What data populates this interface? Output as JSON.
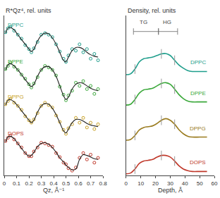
{
  "chart_data": [
    {
      "type": "scatter",
      "marker": "circle-open",
      "y_title": "R*Qz⁴, rel. units",
      "x_title": "Qz, Å⁻¹",
      "xlim": [
        0,
        0.8
      ],
      "xticks": [
        0,
        0.1,
        0.2,
        0.3,
        0.4,
        0.5,
        0.6,
        0.7,
        0.8
      ],
      "ylim": [
        0,
        10
      ],
      "tick_labels": "x",
      "x": [
        0.01,
        0.03,
        0.05,
        0.08,
        0.11,
        0.14,
        0.17,
        0.2,
        0.22,
        0.24,
        0.27,
        0.3,
        0.33,
        0.36,
        0.39,
        0.42,
        0.45,
        0.48,
        0.5,
        0.52,
        0.55,
        0.58,
        0.61,
        0.64,
        0.67,
        0.7,
        0.73,
        0.76
      ],
      "series": [
        {
          "name": "DPPC",
          "color": "#1f9e8c",
          "values": [
            8.95,
            9.2,
            9.3,
            9.05,
            8.8,
            8.55,
            8.15,
            7.9,
            7.7,
            7.95,
            8.35,
            8.8,
            8.9,
            8.8,
            8.65,
            8.2,
            7.75,
            7.3,
            7.1,
            7.5,
            7.9,
            7.8,
            8.2,
            7.7,
            7.9,
            7.3,
            7.6,
            7.2
          ],
          "fit": [
            8.9,
            9.2,
            9.25,
            9.1,
            8.8,
            8.5,
            8.2,
            7.9,
            7.75,
            7.9,
            8.4,
            8.75,
            8.9,
            8.85,
            8.6,
            8.2,
            7.7,
            7.2,
            7.1,
            7.4,
            7.8,
            8.0,
            8.0,
            7.9,
            7.7,
            7.55,
            7.45,
            7.4
          ]
        },
        {
          "name": "DPPE",
          "color": "#3aa83a",
          "values": [
            6.65,
            6.85,
            7.05,
            6.8,
            6.6,
            6.3,
            6.05,
            5.7,
            5.5,
            5.75,
            6.15,
            6.6,
            6.85,
            6.75,
            6.6,
            6.25,
            5.55,
            5.05,
            4.7,
            5.0,
            5.3,
            5.8,
            5.6,
            5.9,
            5.4,
            5.6,
            5.1,
            5.4
          ],
          "fit": [
            6.6,
            6.9,
            7.0,
            6.85,
            6.6,
            6.3,
            6.0,
            5.7,
            5.55,
            5.7,
            6.2,
            6.6,
            6.8,
            6.8,
            6.6,
            6.2,
            5.6,
            5.0,
            4.75,
            4.9,
            5.4,
            5.7,
            5.8,
            5.75,
            5.6,
            5.45,
            5.35,
            5.3
          ]
        },
        {
          "name": "DPPG",
          "color": "#c9a227",
          "values": [
            4.45,
            4.65,
            4.8,
            4.55,
            4.35,
            4.1,
            3.7,
            3.45,
            3.3,
            3.5,
            3.9,
            4.35,
            4.55,
            4.4,
            4.25,
            3.75,
            3.35,
            2.85,
            2.6,
            2.95,
            3.2,
            3.6,
            3.3,
            3.6,
            3.0,
            3.3,
            2.9,
            3.2
          ],
          "fit": [
            4.4,
            4.7,
            4.75,
            4.6,
            4.35,
            4.05,
            3.75,
            3.45,
            3.3,
            3.45,
            3.95,
            4.35,
            4.5,
            4.45,
            4.2,
            3.8,
            3.3,
            2.8,
            2.65,
            2.9,
            3.3,
            3.5,
            3.5,
            3.4,
            3.25,
            3.15,
            3.1,
            3.05
          ]
        },
        {
          "name": "DOPS",
          "color": "#c0392b",
          "values": [
            2.15,
            2.35,
            2.5,
            2.25,
            2.0,
            1.75,
            1.4,
            1.2,
            1.2,
            1.5,
            1.75,
            2.05,
            2.0,
            1.9,
            1.8,
            1.4,
            1.15,
            0.8,
            0.7,
            0.45,
            0.3,
            0.5,
            1.1,
            1.4,
            1.0,
            1.3,
            0.8,
            1.1
          ],
          "fit": [
            2.1,
            2.4,
            2.45,
            2.3,
            2.0,
            1.7,
            1.4,
            1.2,
            1.25,
            1.45,
            1.8,
            2.0,
            2.05,
            1.95,
            1.75,
            1.45,
            1.1,
            0.85,
            0.65,
            0.5,
            0.35,
            0.4,
            1.0,
            1.3,
            1.25,
            1.15,
            1.05,
            1.0
          ]
        }
      ]
    },
    {
      "type": "line",
      "y_title": "Density, rel. units",
      "x_title": "Depth, Å",
      "xlim": [
        0,
        60
      ],
      "xticks": [
        0,
        10,
        20,
        30,
        40,
        50,
        60
      ],
      "ylim": [
        0,
        10
      ],
      "tick_labels": "x",
      "x": [
        0,
        3,
        6,
        9,
        12,
        15,
        18,
        21,
        24,
        27,
        30,
        33,
        36,
        39,
        42,
        45,
        50,
        55
      ],
      "series": [
        {
          "name": "DPPC",
          "color": "#1f9e8c",
          "boundaries": [
            6,
            24,
            33
          ],
          "values": [
            6.3,
            6.35,
            6.65,
            7.1,
            7.3,
            7.35,
            7.4,
            7.5,
            7.6,
            7.62,
            7.5,
            7.2,
            6.9,
            6.7,
            6.55,
            6.5,
            6.5,
            6.5
          ]
        },
        {
          "name": "DPPE",
          "color": "#3aa83a",
          "boundaries": [
            6,
            24,
            33
          ],
          "values": [
            4.4,
            4.45,
            4.75,
            5.15,
            5.35,
            5.4,
            5.45,
            5.6,
            5.75,
            5.8,
            5.7,
            5.4,
            5.05,
            4.8,
            4.65,
            4.6,
            4.6,
            4.6
          ]
        },
        {
          "name": "DPPG",
          "color": "#9a7b1e",
          "boundaries": [
            6,
            24,
            33
          ],
          "values": [
            2.2,
            2.25,
            2.5,
            2.85,
            3.0,
            3.05,
            3.1,
            3.25,
            3.45,
            3.55,
            3.45,
            3.2,
            2.85,
            2.6,
            2.45,
            2.4,
            2.4,
            2.4
          ]
        },
        {
          "name": "DOPS",
          "color": "#c0392b",
          "boundaries": [
            6,
            24,
            33
          ],
          "values": [
            0.1,
            0.15,
            0.4,
            0.75,
            0.9,
            0.95,
            1.0,
            1.15,
            1.25,
            1.25,
            1.15,
            0.9,
            0.6,
            0.4,
            0.3,
            0.25,
            0.25,
            0.25
          ]
        }
      ],
      "annotations": [
        {
          "text": "TG",
          "x": 12,
          "span": [
            5,
            22
          ]
        },
        {
          "text": "HG",
          "x": 28,
          "span": [
            22,
            35
          ]
        }
      ]
    }
  ]
}
